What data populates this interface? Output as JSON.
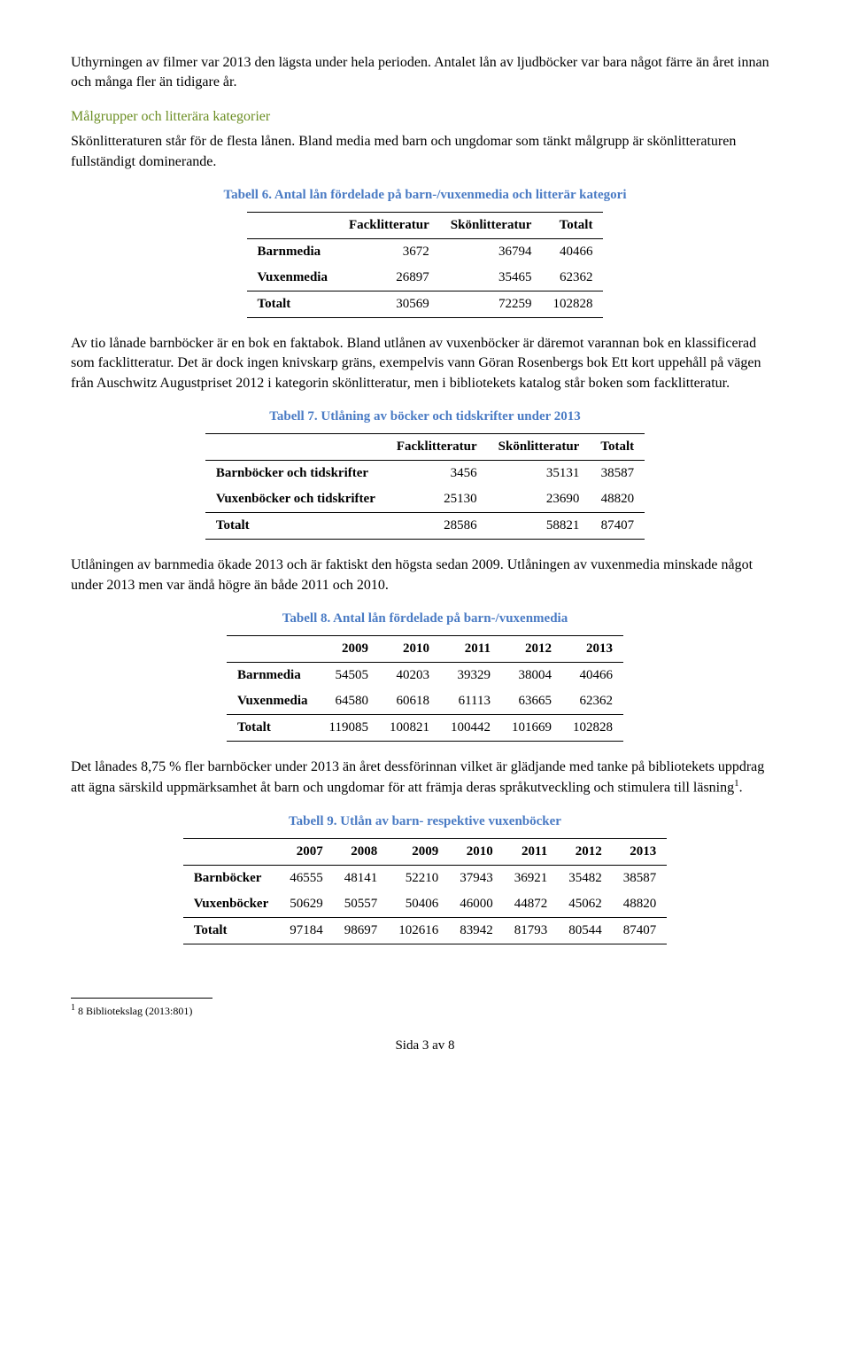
{
  "p1": "Uthyrningen av filmer var 2013 den lägsta under hela perioden. Antalet lån av ljudböcker var bara något färre än året innan och många fler än tidigare år.",
  "h1": "Målgrupper och litterära kategorier",
  "p2": "Skönlitteraturen står för de flesta lånen. Bland media med barn och ungdomar som tänkt målgrupp är skönlitteraturen fullständigt dominerande.",
  "t6": {
    "caption": "Tabell 6. Antal lån fördelade på barn-/vuxenmedia och litterär kategori",
    "cols": [
      "",
      "Facklitteratur",
      "Skönlitteratur",
      "Totalt"
    ],
    "rows": [
      [
        "Barnmedia",
        "3672",
        "36794",
        "40466"
      ],
      [
        "Vuxenmedia",
        "26897",
        "35465",
        "62362"
      ],
      [
        "Totalt",
        "30569",
        "72259",
        "102828"
      ]
    ]
  },
  "p3": "Av tio lånade barnböcker är en bok en faktabok. Bland utlånen av vuxenböcker är däremot varannan bok en klassificerad som facklitteratur. Det är dock ingen knivskarp gräns, exempelvis vann Göran Rosenbergs bok Ett kort uppehåll på vägen från Auschwitz Augustpriset 2012 i kategorin skönlitteratur, men i bibliotekets katalog står boken som facklitteratur.",
  "t7": {
    "caption": "Tabell 7. Utlåning av böcker och tidskrifter under 2013",
    "cols": [
      "",
      "Facklitteratur",
      "Skönlitteratur",
      "Totalt"
    ],
    "rows": [
      [
        "Barnböcker och tidskrifter",
        "3456",
        "35131",
        "38587"
      ],
      [
        "Vuxenböcker och tidskrifter",
        "25130",
        "23690",
        "48820"
      ],
      [
        "Totalt",
        "28586",
        "58821",
        "87407"
      ]
    ]
  },
  "p4": "Utlåningen av barnmedia ökade 2013 och är faktiskt den högsta sedan 2009. Utlåningen av vuxenmedia minskade något under 2013 men var ändå högre än både 2011 och 2010.",
  "t8": {
    "caption": "Tabell 8. Antal lån fördelade på barn-/vuxenmedia",
    "cols": [
      "",
      "2009",
      "2010",
      "2011",
      "2012",
      "2013"
    ],
    "rows": [
      [
        "Barnmedia",
        "54505",
        "40203",
        "39329",
        "38004",
        "40466"
      ],
      [
        "Vuxenmedia",
        "64580",
        "60618",
        "61113",
        "63665",
        "62362"
      ],
      [
        "Totalt",
        "119085",
        "100821",
        "100442",
        "101669",
        "102828"
      ]
    ]
  },
  "p5a": "Det lånades 8,75 % fler barnböcker under 2013 än året dessförinnan vilket är glädjande med tanke på bibliotekets uppdrag att ägna särskild uppmärksamhet åt barn och ungdomar för att främja deras språkutveckling och stimulera till läsning",
  "p5b": ".",
  "t9": {
    "caption": "Tabell 9. Utlån av barn- respektive vuxenböcker",
    "cols": [
      "",
      "2007",
      "2008",
      "2009",
      "2010",
      "2011",
      "2012",
      "2013"
    ],
    "rows": [
      [
        "Barnböcker",
        "46555",
        "48141",
        "52210",
        "37943",
        "36921",
        "35482",
        "38587"
      ],
      [
        "Vuxenböcker",
        "50629",
        "50557",
        "50406",
        "46000",
        "44872",
        "45062",
        "48820"
      ],
      [
        "Totalt",
        "97184",
        "98697",
        "102616",
        "83942",
        "81793",
        "80544",
        "87407"
      ]
    ]
  },
  "footnote_marker": "1",
  "footnote_text": " 8 Bibliotekslag (2013:801)",
  "pagenum": "Sida 3 av 8"
}
